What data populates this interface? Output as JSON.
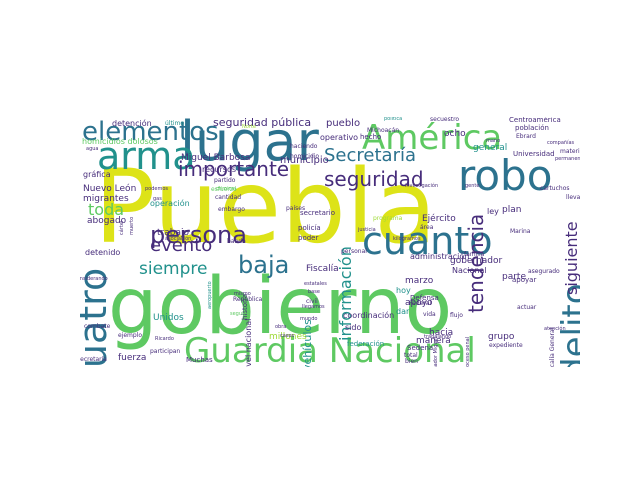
{
  "palette": {
    "yellow": "#dde318",
    "green": "#5ec962",
    "teal": "#21918c",
    "blue": "#2c728e",
    "purple": "#472d7b",
    "dark": "#440154",
    "lime": "#a0da39"
  },
  "words": [
    {
      "text": "Puebla",
      "color": "#dde318"
    },
    {
      "text": "gobierno",
      "color": "#5ec962"
    },
    {
      "text": "Guardia Nacional",
      "color": "#5ec962"
    },
    {
      "text": "lugar",
      "color": "#2c728e"
    },
    {
      "text": "América",
      "color": "#5ec962"
    },
    {
      "text": "cuanto",
      "color": "#2c728e"
    },
    {
      "text": "robo",
      "color": "#2c728e"
    },
    {
      "text": "arma",
      "color": "#21918c"
    },
    {
      "text": "cuatro",
      "color": "#2c728e"
    },
    {
      "text": "elementos",
      "color": "#2c728e"
    },
    {
      "text": "delito",
      "color": "#2c728e"
    },
    {
      "text": "persona",
      "color": "#472d7b"
    },
    {
      "text": "baja",
      "color": "#2c728e"
    },
    {
      "text": "importante",
      "color": "#472d7b"
    },
    {
      "text": "seguridad",
      "color": "#472d7b"
    },
    {
      "text": "Secretaría",
      "color": "#2c728e"
    },
    {
      "text": "evento",
      "color": "#472d7b"
    },
    {
      "text": "siempre",
      "color": "#21918c"
    },
    {
      "text": "toda",
      "color": "#5ec962"
    },
    {
      "text": "tendencia",
      "color": "#472d7b"
    },
    {
      "text": "información",
      "color": "#21918c"
    },
    {
      "text": "siguiente",
      "color": "#472d7b"
    },
    {
      "text": "seguridad pública",
      "color": "#472d7b"
    },
    {
      "text": "pueblo",
      "color": "#472d7b"
    },
    {
      "text": "Miguel Barbosa",
      "color": "#472d7b"
    },
    {
      "text": "municipio",
      "color": "#472d7b"
    },
    {
      "text": "homicidios dolosos",
      "color": "#5ec962"
    },
    {
      "text": "Nuevo León",
      "color": "#472d7b"
    },
    {
      "text": "migrantes",
      "color": "#472d7b"
    },
    {
      "text": "abogado",
      "color": "#472d7b"
    },
    {
      "text": "detenido",
      "color": "#472d7b"
    },
    {
      "text": "trabajo",
      "color": "#472d7b"
    },
    {
      "text": "operación",
      "color": "#21918c"
    },
    {
      "text": "gráfica",
      "color": "#472d7b"
    },
    {
      "text": "recursos",
      "color": "#472d7b"
    },
    {
      "text": "Fiscalía",
      "color": "#472d7b"
    },
    {
      "text": "gobernador",
      "color": "#472d7b"
    },
    {
      "text": "Nacional",
      "color": "#472d7b"
    },
    {
      "text": "parte",
      "color": "#472d7b"
    },
    {
      "text": "apoyo",
      "color": "#472d7b"
    },
    {
      "text": "marzo",
      "color": "#472d7b"
    },
    {
      "text": "Ejército",
      "color": "#472d7b"
    },
    {
      "text": "plan",
      "color": "#472d7b"
    },
    {
      "text": "ley",
      "color": "#472d7b"
    },
    {
      "text": "hoy",
      "color": "#21918c"
    },
    {
      "text": "dar",
      "color": "#21918c"
    },
    {
      "text": "sido",
      "color": "#472d7b"
    },
    {
      "text": "grupo",
      "color": "#472d7b"
    },
    {
      "text": "manera",
      "color": "#472d7b"
    },
    {
      "text": "hacia",
      "color": "#472d7b"
    },
    {
      "text": "coordinación",
      "color": "#472d7b"
    },
    {
      "text": "Unidos",
      "color": "#21918c"
    },
    {
      "text": "fuerza",
      "color": "#472d7b"
    },
    {
      "text": "vehículos",
      "color": "#21918c"
    },
    {
      "text": "nivel nacional",
      "color": "#472d7b"
    },
    {
      "text": "millones",
      "color": "#a0da39"
    },
    {
      "text": "historia",
      "color": "#472d7b"
    },
    {
      "text": "policía",
      "color": "#472d7b"
    },
    {
      "text": "poder",
      "color": "#472d7b"
    },
    {
      "text": "general",
      "color": "#21918c"
    },
    {
      "text": "ocho",
      "color": "#472d7b"
    },
    {
      "text": "operativo",
      "color": "#472d7b"
    },
    {
      "text": "hecho",
      "color": "#472d7b"
    },
    {
      "text": "Centroamérica",
      "color": "#472d7b"
    },
    {
      "text": "población",
      "color": "#472d7b"
    },
    {
      "text": "Universidad",
      "color": "#472d7b"
    },
    {
      "text": "administración",
      "color": "#472d7b"
    },
    {
      "text": "secretario",
      "color": "#472d7b"
    },
    {
      "text": "personal",
      "color": "#472d7b"
    },
    {
      "text": "detención",
      "color": "#472d7b"
    },
    {
      "text": "último",
      "color": "#21918c"
    },
    {
      "text": "haciendo",
      "color": "#472d7b"
    },
    {
      "text": "homicidio",
      "color": "#472d7b"
    },
    {
      "text": "partido",
      "color": "#472d7b"
    },
    {
      "text": "esfuerzo",
      "color": "#5ec962"
    },
    {
      "text": "cantidad",
      "color": "#472d7b"
    },
    {
      "text": "embargo",
      "color": "#472d7b"
    },
    {
      "text": "países",
      "color": "#472d7b"
    },
    {
      "text": "justicia",
      "color": "#472d7b"
    },
    {
      "text": "banda",
      "color": "#472d7b"
    },
    {
      "text": "República",
      "color": "#472d7b"
    },
    {
      "text": "mundo",
      "color": "#472d7b"
    },
    {
      "text": "Defensa",
      "color": "#472d7b"
    },
    {
      "text": "Sedena",
      "color": "#472d7b"
    },
    {
      "text": "total",
      "color": "#472d7b"
    },
    {
      "text": "bien",
      "color": "#472d7b"
    },
    {
      "text": "federación",
      "color": "#21918c"
    },
    {
      "text": "trabajando",
      "color": "#472d7b"
    },
    {
      "text": "expediente",
      "color": "#472d7b"
    },
    {
      "text": "apoyar",
      "color": "#472d7b"
    },
    {
      "text": "actuar",
      "color": "#472d7b"
    },
    {
      "text": "atención",
      "color": "#472d7b"
    },
    {
      "text": "familia",
      "color": "#472d7b"
    },
    {
      "text": "asegurado",
      "color": "#472d7b"
    },
    {
      "text": "Marina",
      "color": "#472d7b"
    },
    {
      "text": "cartuchos",
      "color": "#472d7b"
    },
    {
      "text": "llevar",
      "color": "#472d7b"
    },
    {
      "text": "materia",
      "color": "#472d7b"
    },
    {
      "text": "permanente",
      "color": "#472d7b"
    },
    {
      "text": "compañías",
      "color": "#472d7b"
    },
    {
      "text": "secuestro",
      "color": "#472d7b"
    },
    {
      "text": "política",
      "color": "#21918c"
    },
    {
      "text": "Michoacán",
      "color": "#472d7b"
    },
    {
      "text": "investigación",
      "color": "#472d7b"
    },
    {
      "text": "gente",
      "color": "#472d7b"
    },
    {
      "text": "kilogramos",
      "color": "#472d7b"
    },
    {
      "text": "área",
      "color": "#472d7b"
    },
    {
      "text": "programa",
      "color": "#a0da39"
    },
    {
      "text": "Federal",
      "color": "#472d7b"
    },
    {
      "text": "estatales",
      "color": "#472d7b"
    },
    {
      "text": "base",
      "color": "#472d7b"
    },
    {
      "text": "civil",
      "color": "#472d7b"
    },
    {
      "text": "llegamos",
      "color": "#472d7b"
    },
    {
      "text": "casos",
      "color": "#472d7b"
    },
    {
      "text": "obra",
      "color": "#472d7b"
    },
    {
      "text": "Muchas",
      "color": "#472d7b"
    },
    {
      "text": "participan",
      "color": "#472d7b"
    },
    {
      "text": "ejemplo",
      "color": "#472d7b"
    },
    {
      "text": "combate",
      "color": "#472d7b"
    },
    {
      "text": "considerando",
      "color": "#472d7b"
    },
    {
      "text": "Ricardo",
      "color": "#472d7b"
    },
    {
      "text": "secretaría",
      "color": "#472d7b"
    },
    {
      "text": "podemos",
      "color": "#472d7b"
    },
    {
      "text": "gas",
      "color": "#472d7b"
    },
    {
      "text": "cártel",
      "color": "#472d7b"
    },
    {
      "text": "muerto",
      "color": "#472d7b"
    },
    {
      "text": "agua",
      "color": "#472d7b"
    },
    {
      "text": "Marina Armada",
      "color": "#21918c"
    },
    {
      "text": "Fiscalía General",
      "color": "#472d7b"
    },
    {
      "text": "gobernador Miguel",
      "color": "#472d7b"
    },
    {
      "text": "proceso penal",
      "color": "#472d7b"
    },
    {
      "text": "Ebrard",
      "color": "#472d7b"
    },
    {
      "text": "mismo",
      "color": "#472d7b"
    },
    {
      "text": "vida",
      "color": "#472d7b"
    },
    {
      "text": "seguir",
      "color": "#5ec962"
    },
    {
      "text": "asociación",
      "color": "#472d7b"
    },
    {
      "text": "criminal",
      "color": "#5ec962"
    },
    {
      "text": "aeropuerto",
      "color": "#21918c"
    },
    {
      "text": "Norte",
      "color": "#a0da39"
    },
    {
      "text": "flujo",
      "color": "#472d7b"
    },
    {
      "text": "mano",
      "color": "#472d7b"
    }
  ]
}
